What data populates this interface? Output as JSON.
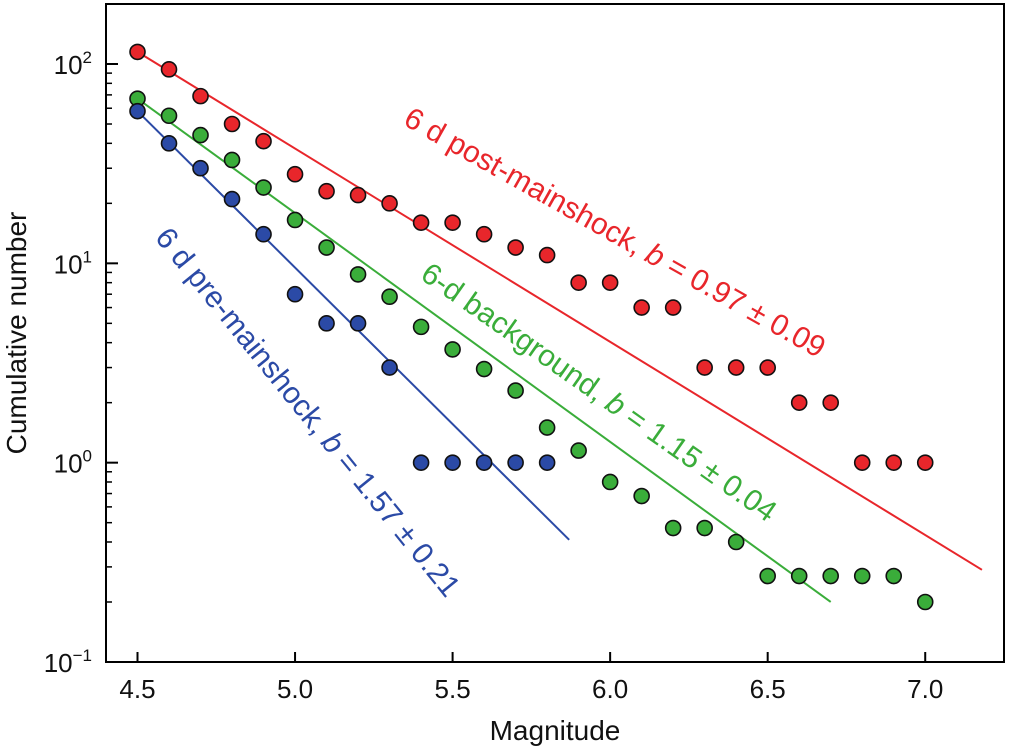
{
  "chart_data": {
    "type": "scatter",
    "title": "",
    "xlabel": "Magnitude",
    "ylabel": "Cumulative number",
    "xlim": [
      4.4,
      7.25
    ],
    "ylim": [
      0.1,
      200
    ],
    "yscale": "log",
    "grid": false,
    "xticks": [
      {
        "value": 4.5,
        "label": "4.5"
      },
      {
        "value": 5.0,
        "label": "5.0"
      },
      {
        "value": 5.5,
        "label": "5.5"
      },
      {
        "value": 6.0,
        "label": "6.0"
      },
      {
        "value": 6.5,
        "label": "6.5"
      },
      {
        "value": 7.0,
        "label": "7.0"
      }
    ],
    "yticks": [
      {
        "value": 0.1,
        "base": "10",
        "exp": "−1"
      },
      {
        "value": 1,
        "base": "10",
        "exp": "0"
      },
      {
        "value": 10,
        "base": "10",
        "exp": "1"
      },
      {
        "value": 100,
        "base": "10",
        "exp": "2"
      }
    ],
    "series": [
      {
        "color": "#e8262b",
        "points": [
          [
            4.5,
            115
          ],
          [
            4.6,
            94
          ],
          [
            4.7,
            69
          ],
          [
            4.8,
            50
          ],
          [
            4.9,
            41
          ],
          [
            5.0,
            28
          ],
          [
            5.1,
            23
          ],
          [
            5.2,
            22
          ],
          [
            5.3,
            20
          ],
          [
            5.4,
            16
          ],
          [
            5.5,
            16
          ],
          [
            5.6,
            14
          ],
          [
            5.7,
            12
          ],
          [
            5.8,
            11
          ],
          [
            5.9,
            8
          ],
          [
            6.0,
            8
          ],
          [
            6.1,
            6
          ],
          [
            6.2,
            6
          ],
          [
            6.3,
            3
          ],
          [
            6.4,
            3
          ],
          [
            6.5,
            3
          ],
          [
            6.6,
            2
          ],
          [
            6.7,
            2
          ],
          [
            6.8,
            1
          ],
          [
            6.9,
            1
          ],
          [
            7.0,
            1
          ]
        ],
        "fit": {
          "x": [
            4.5,
            7.18
          ],
          "y": [
            115,
            0.29
          ]
        },
        "label_a": "6 d post-mainshock, ",
        "label_b": "b",
        "label_c": " = 0.97 ± 0.09"
      },
      {
        "color": "#3aad3a",
        "points": [
          [
            4.5,
            67
          ],
          [
            4.6,
            55
          ],
          [
            4.7,
            44
          ],
          [
            4.8,
            33
          ],
          [
            4.9,
            24
          ],
          [
            5.0,
            16.5
          ],
          [
            5.1,
            12
          ],
          [
            5.2,
            8.8
          ],
          [
            5.3,
            6.8
          ],
          [
            5.4,
            4.8
          ],
          [
            5.5,
            3.7
          ],
          [
            5.6,
            2.95
          ],
          [
            5.7,
            2.3
          ],
          [
            5.8,
            1.5
          ],
          [
            5.9,
            1.15
          ],
          [
            6.0,
            0.8
          ],
          [
            6.1,
            0.68
          ],
          [
            6.2,
            0.47
          ],
          [
            6.3,
            0.47
          ],
          [
            6.4,
            0.4
          ],
          [
            6.5,
            0.27
          ],
          [
            6.6,
            0.27
          ],
          [
            6.7,
            0.27
          ],
          [
            6.8,
            0.27
          ],
          [
            6.9,
            0.27
          ],
          [
            7.0,
            0.2
          ]
        ],
        "fit": {
          "x": [
            4.5,
            6.7
          ],
          "y": [
            67,
            0.2
          ]
        },
        "label_a": "6-d background, ",
        "label_b": "b",
        "label_c": " = 1.15 ± 0.04"
      },
      {
        "color": "#2b4aa6",
        "points": [
          [
            4.5,
            58
          ],
          [
            4.6,
            40
          ],
          [
            4.7,
            30
          ],
          [
            4.8,
            21
          ],
          [
            4.9,
            14
          ],
          [
            5.0,
            7
          ],
          [
            5.1,
            5
          ],
          [
            5.2,
            5
          ],
          [
            5.3,
            3
          ],
          [
            5.4,
            1
          ],
          [
            5.5,
            1
          ],
          [
            5.6,
            1
          ],
          [
            5.7,
            1
          ],
          [
            5.8,
            1
          ]
        ],
        "fit": {
          "x": [
            4.5,
            5.87
          ],
          "y": [
            58,
            0.41
          ]
        },
        "label_a": "6 d pre-mainshock, ",
        "label_b": "b",
        "label_c": " = 1.57 ± 0.21"
      }
    ]
  }
}
